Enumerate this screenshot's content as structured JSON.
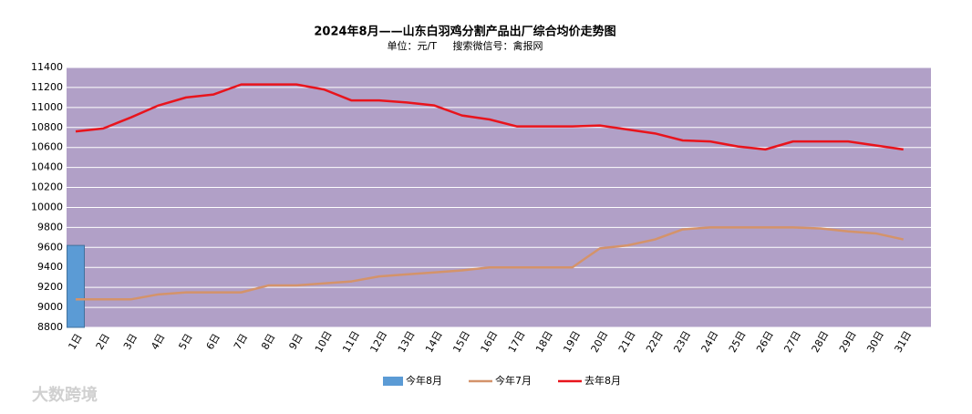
{
  "chart_data": {
    "type": "bar",
    "title": "2024年8月——山东白羽鸡分割产品出厂综合均价走势图",
    "subtitle": "单位：元/T     搜索微信号：禽报网",
    "watermark": "大数跨境",
    "categories": [
      "1日",
      "2日",
      "3日",
      "4日",
      "5日",
      "6日",
      "7日",
      "8日",
      "9日",
      "10日",
      "11日",
      "12日",
      "13日",
      "14日",
      "15日",
      "16日",
      "17日",
      "18日",
      "19日",
      "20日",
      "21日",
      "22日",
      "23日",
      "24日",
      "25日",
      "26日",
      "27日",
      "28日",
      "29日",
      "30日",
      "31日"
    ],
    "series": [
      {
        "name": "今年8月",
        "type": "bar",
        "color": "#5b9bd5",
        "values": [
          9620,
          null,
          null,
          null,
          null,
          null,
          null,
          null,
          null,
          null,
          null,
          null,
          null,
          null,
          null,
          null,
          null,
          null,
          null,
          null,
          null,
          null,
          null,
          null,
          null,
          null,
          null,
          null,
          null,
          null,
          null
        ]
      },
      {
        "name": "今年7月",
        "type": "line",
        "color": "#d4936a",
        "values": [
          9080,
          9080,
          9080,
          9130,
          9150,
          9150,
          9150,
          9220,
          9220,
          9240,
          9260,
          9310,
          9330,
          9350,
          9370,
          9400,
          9400,
          9400,
          9400,
          9590,
          9620,
          9680,
          9780,
          9800,
          9800,
          9800,
          9800,
          9790,
          9760,
          9740,
          9680
        ]
      },
      {
        "name": "去年8月",
        "type": "line",
        "color": "#e8141c",
        "values": [
          10760,
          10790,
          10900,
          11020,
          11100,
          11130,
          11230,
          11230,
          11230,
          11180,
          11070,
          11070,
          11050,
          11020,
          10920,
          10880,
          10810,
          10810,
          10810,
          10820,
          10780,
          10740,
          10670,
          10660,
          10610,
          10580,
          10660,
          10660,
          10660,
          10620,
          10580
        ]
      }
    ],
    "ylim": [
      8800,
      11400
    ],
    "yticks": [
      8800,
      9000,
      9200,
      9400,
      9600,
      9800,
      10000,
      10200,
      10400,
      10600,
      10800,
      11000,
      11200,
      11400
    ],
    "grid": true,
    "plot_background": "#b1a0c7",
    "legend": "bottom"
  }
}
